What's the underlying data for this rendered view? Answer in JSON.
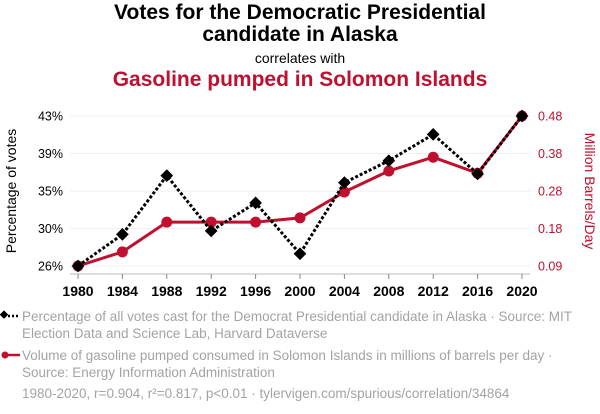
{
  "header": {
    "title_line1": "Votes for the Democratic Presidential",
    "title_line2": "candidate in Alaska",
    "correlates": "correlates with",
    "subtitle": "Gasoline pumped in Solomon Islands"
  },
  "colors": {
    "series1": "#000000",
    "series2": "#c0102f",
    "grid": "#efefef",
    "muted": "#a3a3a3"
  },
  "legend": [
    {
      "text": "Percentage of all votes cast for the Democrat Presidential candidate in Alaska · Source: MIT Election Data and Science Lab, Harvard Dataverse",
      "marker": "diamond-dotted-line"
    },
    {
      "text": "Volume of gasoline pumped consumed in Solomon Islands in millions of barrels per day · Source: Energy Information Administration",
      "marker": "circle-solid-line"
    }
  ],
  "footer": "1980-2020, r=0.904, r²=0.817, p<0.01 · tylervigen.com/spurious/correlation/34864",
  "chart_data": {
    "type": "line",
    "title": "Votes for the Democratic Presidential candidate in Alaska correlates with Gasoline pumped in Solomon Islands",
    "x": [
      1980,
      1984,
      1988,
      1992,
      1996,
      2000,
      2004,
      2008,
      2012,
      2016,
      2020
    ],
    "xlabel": "",
    "x_ticks": [
      "1980",
      "1984",
      "1988",
      "1992",
      "1996",
      "2000",
      "2004",
      "2008",
      "2012",
      "2016",
      "2020"
    ],
    "y_left": {
      "label": "Percentage of votes",
      "ticks": [
        "26%",
        "30%",
        "35%",
        "39%",
        "43%"
      ],
      "range": [
        25.9,
        43.0
      ]
    },
    "y_right": {
      "label": "Million Barrels/Day",
      "ticks": [
        "0.09",
        "0.18",
        "0.28",
        "0.38",
        "0.48"
      ],
      "range": [
        0.087,
        0.48
      ]
    },
    "grid": true,
    "legend_position": "bottom",
    "series": [
      {
        "name": "Percentage of all votes cast for the Democrat Presidential candidate in Alaska",
        "axis": "left",
        "style": "dotted-diamond",
        "values": [
          25.9,
          29.5,
          36.2,
          29.9,
          33.1,
          27.3,
          35.4,
          37.9,
          40.9,
          36.4,
          43.0
        ]
      },
      {
        "name": "Volume of gasoline pumped consumed in Solomon Islands in millions of barrels per day",
        "axis": "right",
        "style": "solid-circle",
        "values": [
          0.087,
          0.124,
          0.202,
          0.202,
          0.202,
          0.213,
          0.281,
          0.336,
          0.372,
          0.33,
          0.48
        ]
      }
    ]
  }
}
